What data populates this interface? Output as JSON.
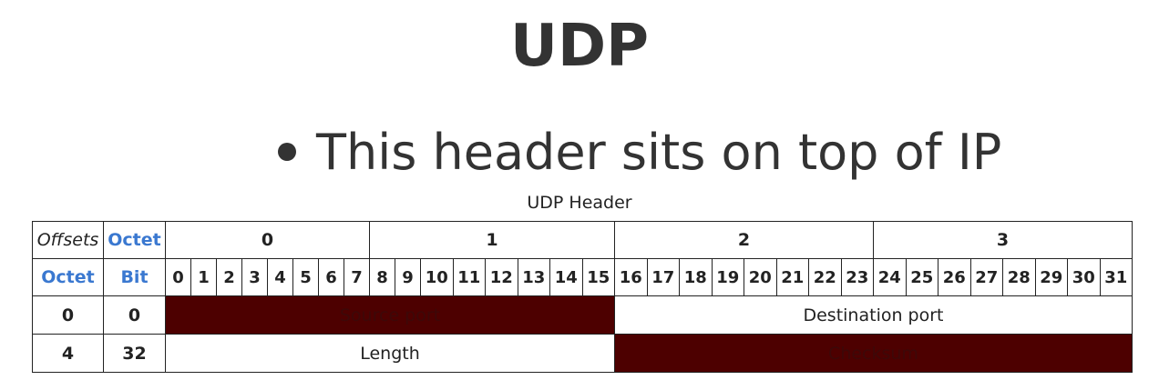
{
  "title": "UDP",
  "bullet": "This header sits on top of IP",
  "table": {
    "caption": "UDP Header",
    "corner": [
      "Offsets",
      "Octet"
    ],
    "octets": [
      "0",
      "1",
      "2",
      "3"
    ],
    "sub_header": [
      "Octet",
      "Bit"
    ],
    "bits": [
      0,
      1,
      2,
      3,
      4,
      5,
      6,
      7,
      8,
      9,
      10,
      11,
      12,
      13,
      14,
      15,
      16,
      17,
      18,
      19,
      20,
      21,
      22,
      23,
      24,
      25,
      26,
      27,
      28,
      29,
      30,
      31
    ],
    "rows": [
      [
        "0",
        "0",
        "Source port",
        "Destination port"
      ],
      [
        "4",
        "32",
        "Length",
        "Checksum"
      ]
    ]
  }
}
